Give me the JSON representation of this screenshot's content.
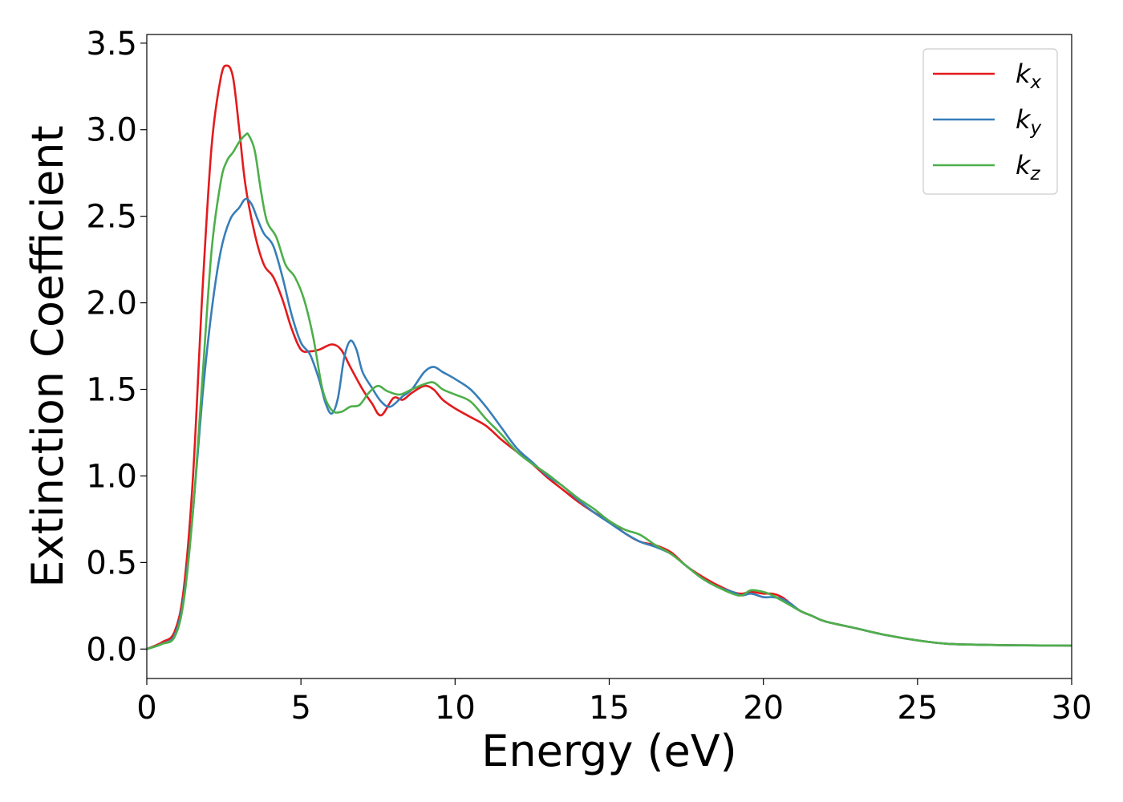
{
  "chart_data": {
    "type": "line",
    "title": "",
    "xlabel": "Energy (eV)",
    "ylabel": "Extinction Coefficient",
    "xlim": [
      0,
      30
    ],
    "ylim": [
      -0.17,
      3.55
    ],
    "xticks": [
      0,
      5,
      10,
      15,
      20,
      25,
      30
    ],
    "xtick_labels": [
      "0",
      "5",
      "10",
      "15",
      "20",
      "25",
      "30"
    ],
    "yticks": [
      0.0,
      0.5,
      1.0,
      1.5,
      2.0,
      2.5,
      3.0,
      3.5
    ],
    "ytick_labels": [
      "0.0",
      "0.5",
      "1.0",
      "1.5",
      "2.0",
      "2.5",
      "3.0",
      "3.5"
    ],
    "grid": false,
    "legend_position": "top-right",
    "series": [
      {
        "name": "k_x",
        "legend_base": "k",
        "legend_sub": "x",
        "color": "#e41a1c",
        "x": [
          0,
          0.5,
          0.9,
          1.2,
          1.5,
          1.8,
          2.1,
          2.4,
          2.6,
          2.8,
          3.0,
          3.2,
          3.5,
          3.8,
          4.1,
          4.4,
          4.7,
          5.0,
          5.3,
          5.6,
          6.0,
          6.3,
          6.6,
          7.0,
          7.3,
          7.6,
          8.0,
          8.3,
          8.6,
          9.0,
          9.3,
          9.6,
          10.0,
          10.5,
          11.0,
          11.5,
          12.0,
          12.5,
          13.0,
          13.5,
          14.0,
          14.5,
          15.0,
          15.5,
          16.0,
          16.5,
          17.0,
          17.5,
          18.0,
          18.5,
          19.0,
          19.3,
          19.6,
          20.0,
          20.3,
          20.6,
          20.9,
          21.2,
          21.6,
          22.0,
          23.0,
          24.0,
          25.0,
          26.0,
          27.0,
          28.0,
          29.0,
          30.0
        ],
        "y": [
          0.0,
          0.04,
          0.1,
          0.35,
          1.0,
          2.05,
          2.9,
          3.3,
          3.37,
          3.3,
          3.0,
          2.68,
          2.4,
          2.22,
          2.15,
          2.02,
          1.85,
          1.73,
          1.72,
          1.73,
          1.76,
          1.73,
          1.63,
          1.5,
          1.42,
          1.35,
          1.45,
          1.44,
          1.48,
          1.52,
          1.5,
          1.44,
          1.39,
          1.34,
          1.29,
          1.21,
          1.14,
          1.07,
          0.99,
          0.92,
          0.85,
          0.79,
          0.74,
          0.67,
          0.62,
          0.6,
          0.56,
          0.48,
          0.42,
          0.37,
          0.33,
          0.32,
          0.33,
          0.32,
          0.32,
          0.3,
          0.26,
          0.22,
          0.19,
          0.16,
          0.12,
          0.08,
          0.05,
          0.03,
          0.025,
          0.022,
          0.021,
          0.02
        ]
      },
      {
        "name": "k_y",
        "legend_base": "k",
        "legend_sub": "y",
        "color": "#377eb8",
        "x": [
          0,
          0.5,
          0.9,
          1.2,
          1.5,
          1.8,
          2.1,
          2.4,
          2.7,
          3.0,
          3.2,
          3.4,
          3.6,
          3.8,
          4.1,
          4.4,
          4.7,
          5.0,
          5.3,
          5.6,
          5.8,
          6.0,
          6.2,
          6.4,
          6.6,
          6.8,
          7.0,
          7.3,
          7.6,
          7.9,
          8.3,
          8.6,
          9.0,
          9.3,
          9.6,
          10.0,
          10.5,
          11.0,
          11.5,
          12.0,
          12.5,
          13.0,
          13.5,
          14.0,
          14.5,
          15.0,
          15.5,
          16.0,
          16.5,
          17.0,
          17.5,
          18.0,
          18.5,
          19.0,
          19.3,
          19.6,
          20.0,
          20.3,
          20.6,
          20.9,
          21.2,
          21.6,
          22.0,
          23.0,
          24.0,
          25.0,
          26.0,
          27.0,
          28.0,
          29.0,
          30.0
        ],
        "y": [
          0.0,
          0.03,
          0.08,
          0.3,
          0.8,
          1.45,
          1.95,
          2.3,
          2.48,
          2.55,
          2.6,
          2.57,
          2.48,
          2.4,
          2.33,
          2.15,
          1.93,
          1.77,
          1.7,
          1.55,
          1.42,
          1.36,
          1.45,
          1.68,
          1.78,
          1.73,
          1.6,
          1.51,
          1.43,
          1.4,
          1.46,
          1.5,
          1.6,
          1.63,
          1.6,
          1.56,
          1.5,
          1.4,
          1.28,
          1.16,
          1.08,
          1.0,
          0.94,
          0.86,
          0.79,
          0.73,
          0.67,
          0.62,
          0.59,
          0.55,
          0.48,
          0.41,
          0.36,
          0.33,
          0.31,
          0.32,
          0.3,
          0.3,
          0.29,
          0.26,
          0.22,
          0.19,
          0.16,
          0.12,
          0.08,
          0.05,
          0.03,
          0.025,
          0.022,
          0.021,
          0.02
        ]
      },
      {
        "name": "k_z",
        "legend_base": "k",
        "legend_sub": "z",
        "color": "#4daf4a",
        "x": [
          0,
          0.5,
          0.9,
          1.2,
          1.5,
          1.8,
          2.1,
          2.4,
          2.6,
          2.8,
          3.0,
          3.2,
          3.3,
          3.5,
          3.7,
          3.9,
          4.2,
          4.5,
          4.8,
          5.1,
          5.4,
          5.7,
          6.0,
          6.3,
          6.6,
          6.9,
          7.2,
          7.5,
          7.8,
          8.2,
          8.6,
          9.0,
          9.3,
          9.6,
          10.0,
          10.5,
          11.0,
          11.5,
          12.0,
          12.5,
          13.0,
          13.5,
          14.0,
          14.5,
          15.0,
          15.5,
          16.0,
          16.5,
          17.0,
          17.5,
          18.0,
          18.5,
          19.0,
          19.3,
          19.6,
          20.0,
          20.3,
          20.6,
          20.9,
          21.2,
          21.6,
          22.0,
          23.0,
          24.0,
          25.0,
          26.0,
          27.0,
          28.0,
          29.0,
          30.0
        ],
        "y": [
          0.0,
          0.03,
          0.07,
          0.28,
          0.8,
          1.55,
          2.3,
          2.7,
          2.82,
          2.87,
          2.93,
          2.97,
          2.97,
          2.88,
          2.65,
          2.47,
          2.38,
          2.22,
          2.15,
          2.02,
          1.8,
          1.5,
          1.38,
          1.37,
          1.4,
          1.41,
          1.48,
          1.52,
          1.49,
          1.47,
          1.5,
          1.53,
          1.54,
          1.5,
          1.47,
          1.43,
          1.33,
          1.24,
          1.14,
          1.07,
          1.01,
          0.94,
          0.87,
          0.81,
          0.74,
          0.69,
          0.66,
          0.6,
          0.55,
          0.48,
          0.41,
          0.36,
          0.32,
          0.31,
          0.34,
          0.33,
          0.31,
          0.28,
          0.25,
          0.22,
          0.19,
          0.16,
          0.12,
          0.08,
          0.05,
          0.03,
          0.025,
          0.022,
          0.021,
          0.02
        ]
      }
    ]
  }
}
